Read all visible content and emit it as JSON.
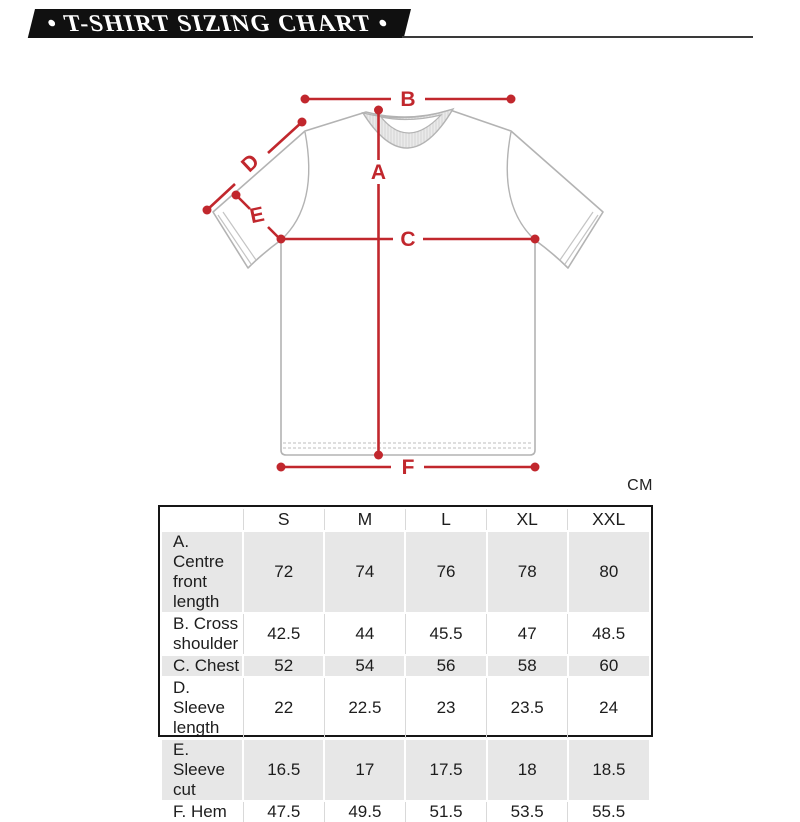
{
  "header": {
    "title": "• T-SHIRT SIZING CHART •"
  },
  "unit_label": "CM",
  "diagram": {
    "labels": {
      "a": "A",
      "b": "B",
      "c": "C",
      "d": "D",
      "e": "E",
      "f": "F"
    }
  },
  "table": {
    "columns": [
      "S",
      "M",
      "L",
      "XL",
      "XXL"
    ],
    "rows": [
      {
        "label": "A. Centre front length",
        "values": [
          "72",
          "74",
          "76",
          "78",
          "80"
        ]
      },
      {
        "label": "B. Cross shoulder",
        "values": [
          "42.5",
          "44",
          "45.5",
          "47",
          "48.5"
        ]
      },
      {
        "label": "C. Chest",
        "values": [
          "52",
          "54",
          "56",
          "58",
          "60"
        ]
      },
      {
        "label": "D. Sleeve length",
        "values": [
          "22",
          "22.5",
          "23",
          "23.5",
          "24"
        ]
      },
      {
        "label": "E. Sleeve cut",
        "values": [
          "16.5",
          "17",
          "17.5",
          "18",
          "18.5"
        ]
      },
      {
        "label": "F. Hem",
        "values": [
          "47.5",
          "49.5",
          "51.5",
          "53.5",
          "55.5"
        ]
      }
    ]
  },
  "colors": {
    "accent_red": "#C1272D",
    "banner_black": "#101010",
    "shirt_outline": "#b3b3b3"
  }
}
